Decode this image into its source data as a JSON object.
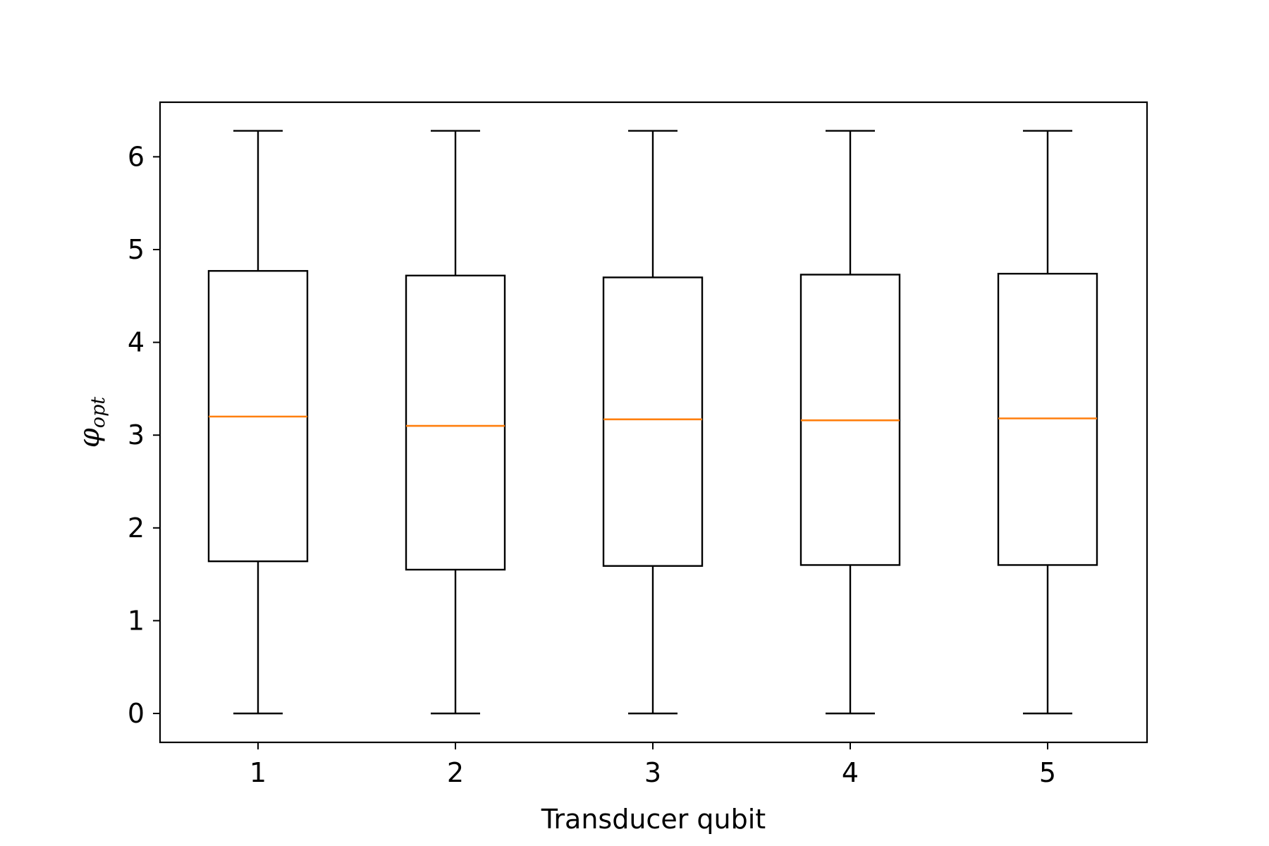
{
  "chart_data": {
    "type": "box",
    "title": "",
    "xlabel": "Transducer qubit",
    "ylabel": "φ",
    "ylabel_subscript": "opt",
    "categories": [
      "1",
      "2",
      "3",
      "4",
      "5"
    ],
    "ylim": [
      -0.31,
      6.6
    ],
    "yticks": [
      0,
      1,
      2,
      3,
      4,
      5,
      6
    ],
    "ytick_labels": [
      "0",
      "1",
      "2",
      "3",
      "4",
      "5",
      "6"
    ],
    "grid": false,
    "boxes": [
      {
        "category": "1",
        "whisker_low": 0.0,
        "q1": 1.64,
        "median": 3.2,
        "q3": 4.77,
        "whisker_high": 6.28
      },
      {
        "category": "2",
        "whisker_low": 0.0,
        "q1": 1.55,
        "median": 3.1,
        "q3": 4.72,
        "whisker_high": 6.28
      },
      {
        "category": "3",
        "whisker_low": 0.0,
        "q1": 1.59,
        "median": 3.17,
        "q3": 4.7,
        "whisker_high": 6.28
      },
      {
        "category": "4",
        "whisker_low": 0.0,
        "q1": 1.6,
        "median": 3.16,
        "q3": 4.73,
        "whisker_high": 6.28
      },
      {
        "category": "5",
        "whisker_low": 0.0,
        "q1": 1.6,
        "median": 3.18,
        "q3": 4.74,
        "whisker_high": 6.28
      }
    ],
    "colors": {
      "box": "#000000",
      "median": "#ff7f0e",
      "whisker": "#000000"
    }
  }
}
